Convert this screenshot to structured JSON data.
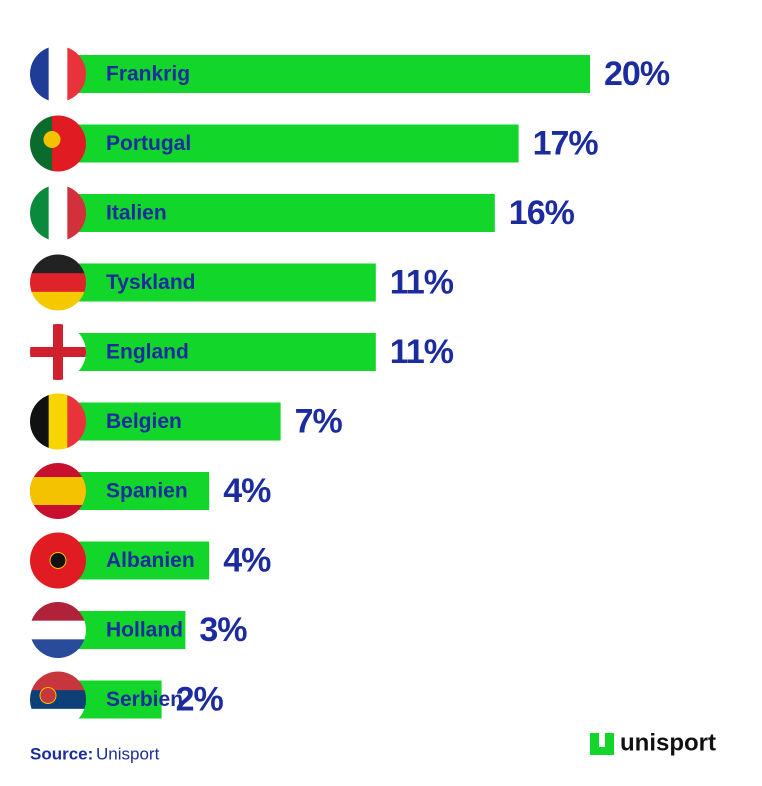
{
  "chart_data": {
    "type": "bar",
    "orientation": "horizontal",
    "categories": [
      "Frankrig",
      "Portugal",
      "Italien",
      "Tyskland",
      "England",
      "Belgien",
      "Spanien",
      "Albanien",
      "Holland",
      "Serbien"
    ],
    "values": [
      20,
      17,
      16,
      11,
      11,
      7,
      4,
      4,
      3,
      2
    ],
    "value_labels": [
      "20%",
      "17%",
      "16%",
      "11%",
      "11%",
      "7%",
      "4%",
      "4%",
      "3%",
      "2%"
    ],
    "color": "#12d62a",
    "source_label": "Source:",
    "source": "Unisport",
    "logo": "unisport"
  }
}
